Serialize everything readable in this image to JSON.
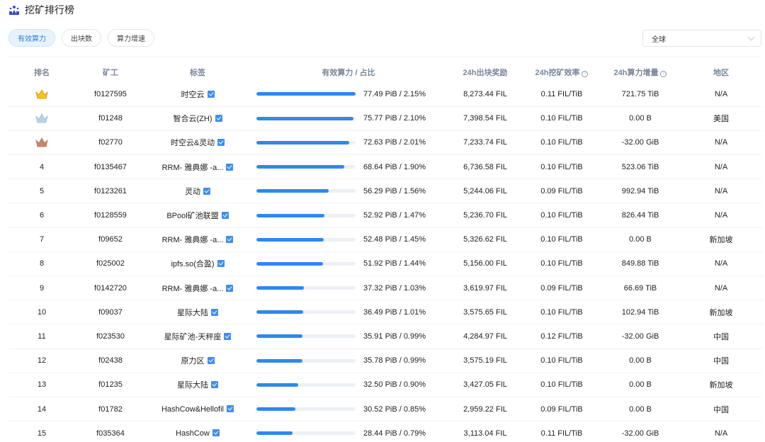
{
  "header": {
    "title": "挖矿排行榜",
    "icon": "leaderboard-people-icon"
  },
  "tabs": [
    {
      "label": "有效算力",
      "active": true
    },
    {
      "label": "出块数",
      "active": false
    },
    {
      "label": "算力增速",
      "active": false
    }
  ],
  "region_filter": {
    "selected": "全球"
  },
  "colors": {
    "accent": "#2f88ee",
    "gold": "#f5c518",
    "silver": "#b8d3e6",
    "bronze": "#c8866a"
  },
  "table": {
    "columns": [
      "排名",
      "矿工",
      "标签",
      "有效算力 / 占比",
      "24h出块奖励",
      "24h挖矿效率",
      "24h算力增量",
      "地区"
    ],
    "rows": [
      {
        "rank": "1",
        "rank_icon": "gold-crown-icon",
        "miner": "f0127595",
        "tag": "时空云",
        "bar_pct": 100,
        "power": "77.49 PiB / 2.15%",
        "reward": "8,273.44 FIL",
        "efficiency": "0.11 FIL/TiB",
        "growth": "721.75 TiB",
        "region": "N/A"
      },
      {
        "rank": "2",
        "rank_icon": "silver-crown-icon",
        "miner": "f01248",
        "tag": "智合云(ZH)",
        "bar_pct": 97.8,
        "power": "75.77 PiB / 2.10%",
        "reward": "7,398.54 FIL",
        "efficiency": "0.10 FIL/TiB",
        "growth": "0.00 B",
        "region": "美国"
      },
      {
        "rank": "3",
        "rank_icon": "bronze-crown-icon",
        "miner": "f02770",
        "tag": "时空云&灵动",
        "bar_pct": 93.7,
        "power": "72.63 PiB / 2.01%",
        "reward": "7,233.74 FIL",
        "efficiency": "0.10 FIL/TiB",
        "growth": "-32.00 GiB",
        "region": "N/A"
      },
      {
        "rank": "4",
        "miner": "f0135467",
        "tag": "RRM- 雅典娜 -a...",
        "bar_pct": 88.6,
        "power": "68.64 PiB / 1.90%",
        "reward": "6,736.58 FIL",
        "efficiency": "0.10 FIL/TiB",
        "growth": "523.06 TiB",
        "region": "N/A"
      },
      {
        "rank": "5",
        "miner": "f0123261",
        "tag": "灵动",
        "bar_pct": 72.6,
        "power": "56.29 PiB / 1.56%",
        "reward": "5,244.06 FIL",
        "efficiency": "0.09 FIL/TiB",
        "growth": "992.94 TiB",
        "region": "N/A"
      },
      {
        "rank": "6",
        "miner": "f0128559",
        "tag": "BPool矿池联盟",
        "bar_pct": 68.3,
        "power": "52.92 PiB / 1.47%",
        "reward": "5,236.70 FIL",
        "efficiency": "0.10 FIL/TiB",
        "growth": "826.44 TiB",
        "region": "N/A"
      },
      {
        "rank": "7",
        "miner": "f09652",
        "tag": "RRM- 雅典娜 -a...",
        "bar_pct": 67.7,
        "power": "52.48 PiB / 1.45%",
        "reward": "5,326.62 FIL",
        "efficiency": "0.10 FIL/TiB",
        "growth": "0.00 B",
        "region": "新加坡"
      },
      {
        "rank": "8",
        "miner": "f025002",
        "tag": "ipfs.so(合盈)",
        "bar_pct": 67.0,
        "power": "51.92 PiB / 1.44%",
        "reward": "5,156.00 FIL",
        "efficiency": "0.10 FIL/TiB",
        "growth": "849.88 TiB",
        "region": "N/A"
      },
      {
        "rank": "9",
        "miner": "f0142720",
        "tag": "RRM- 雅典娜 -a...",
        "bar_pct": 48.2,
        "power": "37.32 PiB / 1.03%",
        "reward": "3,619.97 FIL",
        "efficiency": "0.09 FIL/TiB",
        "growth": "66.69 TiB",
        "region": "N/A"
      },
      {
        "rank": "10",
        "miner": "f09037",
        "tag": "星际大陆",
        "bar_pct": 47.1,
        "power": "36.49 PiB / 1.01%",
        "reward": "3,575.65 FIL",
        "efficiency": "0.10 FIL/TiB",
        "growth": "102.94 TiB",
        "region": "新加坡"
      },
      {
        "rank": "11",
        "miner": "f023530",
        "tag": "星际矿池-天秤座",
        "bar_pct": 46.3,
        "power": "35.91 PiB / 0.99%",
        "reward": "4,284.97 FIL",
        "efficiency": "0.12 FIL/TiB",
        "growth": "-32.00 GiB",
        "region": "中国"
      },
      {
        "rank": "12",
        "miner": "f02438",
        "tag": "原力区",
        "bar_pct": 46.2,
        "power": "35.78 PiB / 0.99%",
        "reward": "3,575.19 FIL",
        "efficiency": "0.10 FIL/TiB",
        "growth": "0.00 B",
        "region": "中国"
      },
      {
        "rank": "13",
        "miner": "f01235",
        "tag": "星际大陆",
        "bar_pct": 41.9,
        "power": "32.50 PiB / 0.90%",
        "reward": "3,427.05 FIL",
        "efficiency": "0.10 FIL/TiB",
        "growth": "0.00 B",
        "region": "新加坡"
      },
      {
        "rank": "14",
        "miner": "f01782",
        "tag": "HashCow&Hellofil",
        "bar_pct": 39.4,
        "power": "30.52 PiB / 0.85%",
        "reward": "2,959.22 FIL",
        "efficiency": "0.09 FIL/TiB",
        "growth": "0.00 B",
        "region": "中国"
      },
      {
        "rank": "15",
        "miner": "f035364",
        "tag": "HashCow",
        "bar_pct": 36.7,
        "power": "28.44 PiB / 0.79%",
        "reward": "3,113.04 FIL",
        "efficiency": "0.11 FIL/TiB",
        "growth": "-32.00 GiB",
        "region": "N/A"
      }
    ]
  }
}
